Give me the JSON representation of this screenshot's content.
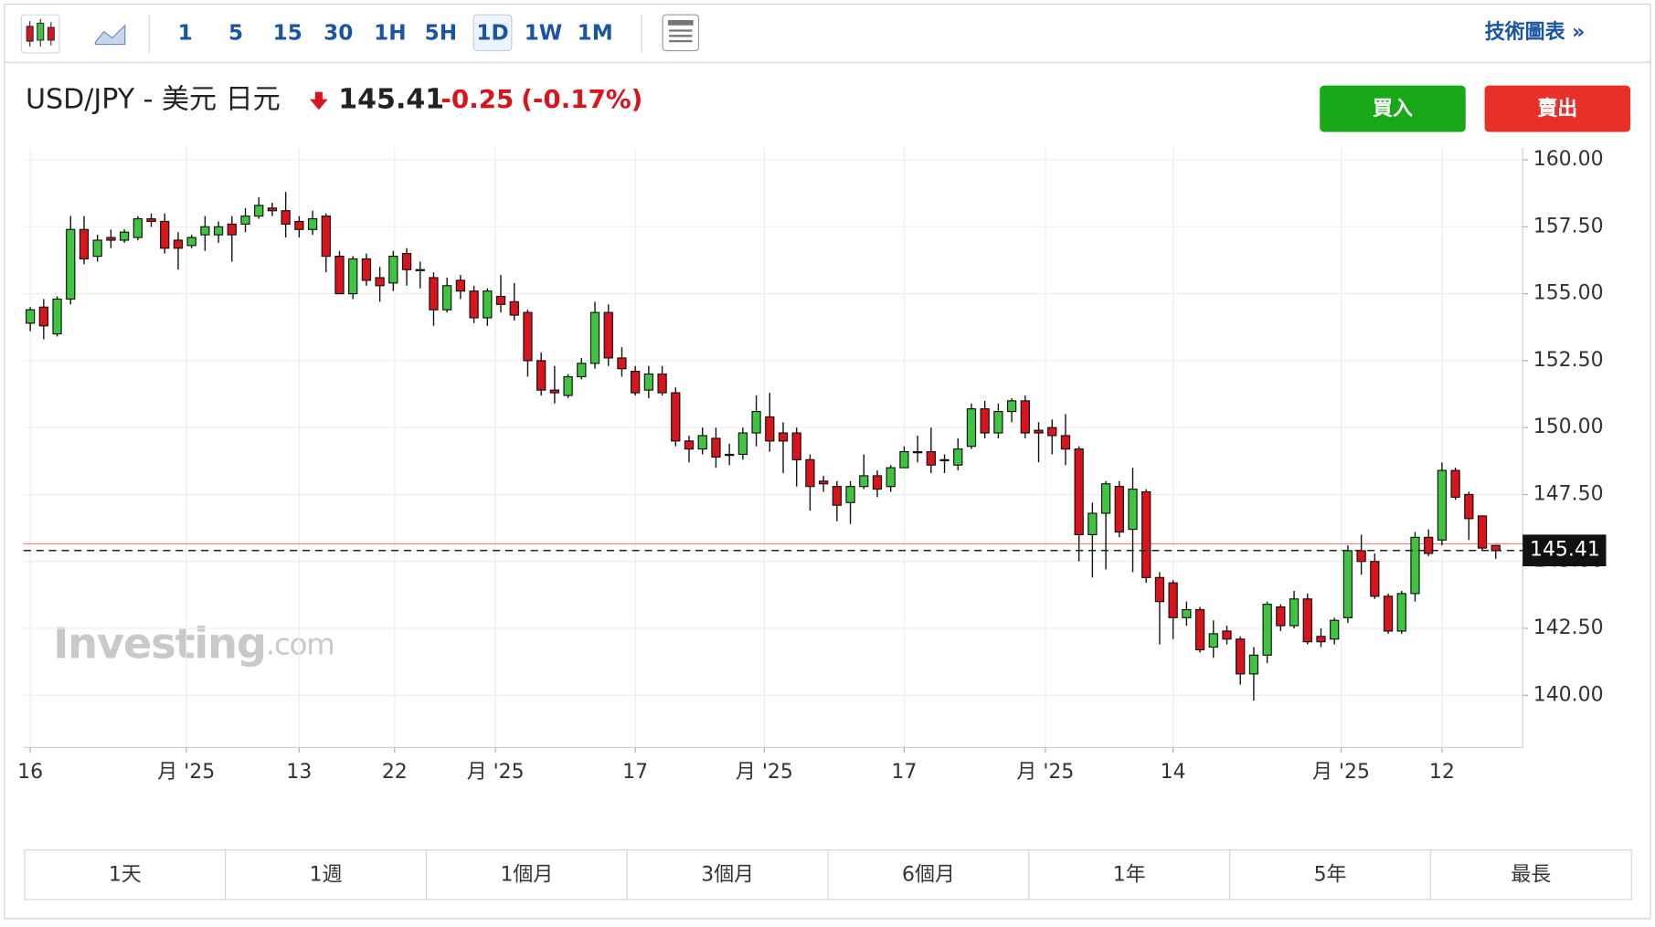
{
  "toolbar": {
    "intervals": [
      "1",
      "5",
      "15",
      "30",
      "1H",
      "5H",
      "1D",
      "1W",
      "1M"
    ],
    "active": "1D",
    "link": "技術圖表 »"
  },
  "header": {
    "symbol": "USD/JPY - 美元 日元",
    "price": 145.41,
    "change": -0.25,
    "change_pct": "(-0.17%)",
    "buy": "買入",
    "sell": "賣出"
  },
  "watermark": {
    "brand": "Investing",
    "suffix": ".com"
  },
  "periods": [
    "1天",
    "1週",
    "1個月",
    "3個月",
    "6個月",
    "1年",
    "5年",
    "最長"
  ],
  "chart_data": {
    "type": "candlestick",
    "up_color": "#3fc43f",
    "down_color": "#d9141d",
    "grid": true,
    "reference_line": 145.66,
    "xlim": [
      -0.5,
      111
    ],
    "ylim": [
      138.05,
      160.45
    ],
    "xticks": [
      {
        "value": 0,
        "label": "16"
      },
      {
        "value": 11.6,
        "label": "月 '25"
      },
      {
        "value": 20,
        "label": "13"
      },
      {
        "value": 27.1,
        "label": "22"
      },
      {
        "value": 34.6,
        "label": "月 '25"
      },
      {
        "value": 45,
        "label": "17"
      },
      {
        "value": 54.6,
        "label": "月 '25"
      },
      {
        "value": 65,
        "label": "17"
      },
      {
        "value": 75.5,
        "label": "月 '25"
      },
      {
        "value": 85,
        "label": "14"
      },
      {
        "value": 97.5,
        "label": "月 '25"
      },
      {
        "value": 105,
        "label": "12"
      }
    ],
    "yticks": [
      {
        "value": 140,
        "label": "140.00"
      },
      {
        "value": 142.5,
        "label": "142.50"
      },
      {
        "value": 145,
        "label": "145.00"
      },
      {
        "value": 147.5,
        "label": "147.50"
      },
      {
        "value": 150,
        "label": "150.00"
      },
      {
        "value": 152.5,
        "label": "152.50"
      },
      {
        "value": 155,
        "label": "155.00"
      },
      {
        "value": 157.5,
        "label": "157.50"
      },
      {
        "value": 160,
        "label": "160.00"
      }
    ],
    "open": [
      153.9,
      154.5,
      153.5,
      154.8,
      157.4,
      156.4,
      157.1,
      157.0,
      157.1,
      157.8,
      157.7,
      157.0,
      156.8,
      157.2,
      157.2,
      157.6,
      157.6,
      157.9,
      158.2,
      158.1,
      157.7,
      157.4,
      157.9,
      156.4,
      155.0,
      156.3,
      155.6,
      155.4,
      156.5,
      155.9,
      155.6,
      154.4,
      155.5,
      155.1,
      154.1,
      154.9,
      154.7,
      154.3,
      152.5,
      151.4,
      151.2,
      151.9,
      152.4,
      154.3,
      152.6,
      152.1,
      151.4,
      152.0,
      151.3,
      149.5,
      149.2,
      149.6,
      149.0,
      149.0,
      149.8,
      150.4,
      149.8,
      149.8,
      148.8,
      148.0,
      147.8,
      147.2,
      147.8,
      148.2,
      147.8,
      148.5,
      149.1,
      149.1,
      148.8,
      148.6,
      149.3,
      150.7,
      149.8,
      150.6,
      151.0,
      149.9,
      150.0,
      149.7,
      149.2,
      146.0,
      146.8,
      147.8,
      146.2,
      147.6,
      144.4,
      144.2,
      142.9,
      143.2,
      141.8,
      142.4,
      142.1,
      140.8,
      141.5,
      143.3,
      142.6,
      143.6,
      142.2,
      142.1,
      142.9,
      145.4,
      145.0,
      143.7,
      142.4,
      143.8,
      145.9,
      145.8,
      148.4,
      147.5,
      146.7,
      145.6
    ],
    "high": [
      154.5,
      154.8,
      154.9,
      157.9,
      157.9,
      157.2,
      157.4,
      157.4,
      157.9,
      158.0,
      158.0,
      157.3,
      157.2,
      157.9,
      157.7,
      157.9,
      158.2,
      158.6,
      158.4,
      158.8,
      157.9,
      158.1,
      158.0,
      156.6,
      156.4,
      156.5,
      156.0,
      156.6,
      156.7,
      156.2,
      155.8,
      155.6,
      155.7,
      155.3,
      155.2,
      155.7,
      155.4,
      154.4,
      152.8,
      152.3,
      152.0,
      152.6,
      154.7,
      154.6,
      153.0,
      152.3,
      152.3,
      152.3,
      151.5,
      149.7,
      150.0,
      150.0,
      149.4,
      150.0,
      151.2,
      151.3,
      150.2,
      150.0,
      149.0,
      148.2,
      148.0,
      148.0,
      149.0,
      148.4,
      148.6,
      149.3,
      149.7,
      150.0,
      149.0,
      149.6,
      150.9,
      151.0,
      150.9,
      151.1,
      151.2,
      150.2,
      150.3,
      150.5,
      149.3,
      147.2,
      148.0,
      148.0,
      148.5,
      147.7,
      144.6,
      144.3,
      143.5,
      143.3,
      142.8,
      142.6,
      142.2,
      141.8,
      143.5,
      143.4,
      143.9,
      143.8,
      142.5,
      142.9,
      145.6,
      146.0,
      145.3,
      143.8,
      143.9,
      146.1,
      146.2,
      148.7,
      148.5,
      147.6,
      146.7,
      145.6
    ],
    "low": [
      153.6,
      153.3,
      153.4,
      154.6,
      156.1,
      156.2,
      156.7,
      156.9,
      157.0,
      157.5,
      156.5,
      155.9,
      156.7,
      156.6,
      156.9,
      156.2,
      157.3,
      157.8,
      157.9,
      157.1,
      157.1,
      157.2,
      155.8,
      155.0,
      154.8,
      155.3,
      154.7,
      155.1,
      155.3,
      155.2,
      153.8,
      154.3,
      154.8,
      153.9,
      153.8,
      154.3,
      154.0,
      151.9,
      151.2,
      150.9,
      151.1,
      151.8,
      152.2,
      152.3,
      151.9,
      151.2,
      151.1,
      151.2,
      149.3,
      148.7,
      149.0,
      148.5,
      148.6,
      148.8,
      149.3,
      149.1,
      148.3,
      147.8,
      146.9,
      147.6,
      146.5,
      146.4,
      147.7,
      147.4,
      147.6,
      148.5,
      148.7,
      148.3,
      148.3,
      148.4,
      149.2,
      149.6,
      149.6,
      150.2,
      149.6,
      148.7,
      149.0,
      148.6,
      145.0,
      144.4,
      144.7,
      145.9,
      144.6,
      144.2,
      141.9,
      142.1,
      142.6,
      141.6,
      141.4,
      141.9,
      140.4,
      139.8,
      141.2,
      142.4,
      142.5,
      141.9,
      141.8,
      141.9,
      142.7,
      144.5,
      143.6,
      142.3,
      142.3,
      143.5,
      145.2,
      145.6,
      147.3,
      145.8,
      145.4,
      145.1
    ],
    "close": [
      154.4,
      153.8,
      154.8,
      157.4,
      156.3,
      157.0,
      157.0,
      157.3,
      157.8,
      157.7,
      156.7,
      156.7,
      157.1,
      157.5,
      157.5,
      157.2,
      157.9,
      158.3,
      158.1,
      157.6,
      157.4,
      157.8,
      156.4,
      155.0,
      156.3,
      155.5,
      155.3,
      156.4,
      155.9,
      155.9,
      154.4,
      155.3,
      155.1,
      154.1,
      155.1,
      154.6,
      154.2,
      152.5,
      151.4,
      151.3,
      151.9,
      152.4,
      154.3,
      152.6,
      152.2,
      151.3,
      152.0,
      151.3,
      149.5,
      149.2,
      149.7,
      148.9,
      149.0,
      149.8,
      150.6,
      149.5,
      149.5,
      148.8,
      147.8,
      147.9,
      147.1,
      147.8,
      148.2,
      147.7,
      148.5,
      149.1,
      149.1,
      148.6,
      148.8,
      149.2,
      150.7,
      149.8,
      150.6,
      151.0,
      149.8,
      149.8,
      149.7,
      149.2,
      146.0,
      146.8,
      147.9,
      146.1,
      147.7,
      144.4,
      143.5,
      142.9,
      143.2,
      141.7,
      142.3,
      142.1,
      140.8,
      141.5,
      143.4,
      142.6,
      143.6,
      142.0,
      142.0,
      142.8,
      145.4,
      145.0,
      143.7,
      142.4,
      143.8,
      145.9,
      145.3,
      148.4,
      147.4,
      146.6,
      145.5,
      145.4
    ]
  }
}
